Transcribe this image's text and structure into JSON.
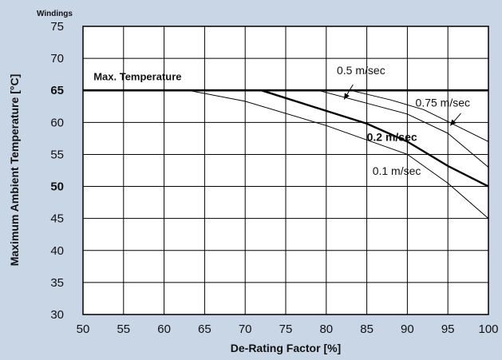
{
  "chart_data": {
    "type": "line",
    "corner_label": "Windings",
    "xlabel": "De-Rating Factor [%]",
    "ylabel": "Maximum Ambient Temperature [°C]",
    "xlim": [
      50,
      100
    ],
    "ylim": [
      30,
      75
    ],
    "x_ticks": [
      "50",
      "55",
      "60",
      "65",
      "70",
      "75",
      "80",
      "85",
      "90",
      "95",
      "100"
    ],
    "y_ticks": [
      "75",
      "70",
      "65",
      "60",
      "55",
      "50",
      "45",
      "40",
      "35",
      "30"
    ],
    "y_ticks_bold": [
      "65",
      "50"
    ],
    "grid": true,
    "series": [
      {
        "name": "Max. Temperature",
        "x": [
          50,
          100
        ],
        "y": [
          65,
          65
        ],
        "width": 2.6
      },
      {
        "name": "0.1 m/sec",
        "x": [
          63,
          70,
          80,
          90,
          95,
          100
        ],
        "y": [
          65,
          63.3,
          59.5,
          55,
          50.5,
          45
        ],
        "width": 1
      },
      {
        "name": "0.2 m/sec",
        "x": [
          72,
          80,
          85,
          90,
          95,
          100
        ],
        "y": [
          65,
          61.8,
          59.8,
          57,
          53.2,
          50
        ],
        "width": 2.4
      },
      {
        "name": "0.5 m/sec",
        "x": [
          79,
          85,
          90,
          95,
          100
        ],
        "y": [
          65,
          63,
          61.3,
          58.3,
          53
        ],
        "width": 1
      },
      {
        "name": "0.75 m/sec",
        "x": [
          83,
          88,
          92,
          96,
          100
        ],
        "y": [
          65,
          63.5,
          62,
          59.5,
          57
        ],
        "width": 1
      }
    ],
    "annotations": [
      {
        "text": "Max. Temperature",
        "x": 51.3,
        "y": 66.6,
        "style": "maxt"
      },
      {
        "text": "0.5 m/sec",
        "x": 81.3,
        "y": 67.5,
        "style": ""
      },
      {
        "text": "0.75 m/sec",
        "x": 91,
        "y": 62.5,
        "style": ""
      },
      {
        "text": "0.2 m/sec",
        "x": 85,
        "y": 57.1,
        "style": "bold"
      },
      {
        "text": "0.1 m/sec",
        "x": 85.7,
        "y": 51.8,
        "style": ""
      }
    ],
    "arrows": [
      {
        "from": [
          83.3,
          65.9
        ],
        "to": [
          82.2,
          63.6
        ]
      },
      {
        "from": [
          96.6,
          61.4
        ],
        "to": [
          95.3,
          59.5
        ]
      }
    ]
  }
}
